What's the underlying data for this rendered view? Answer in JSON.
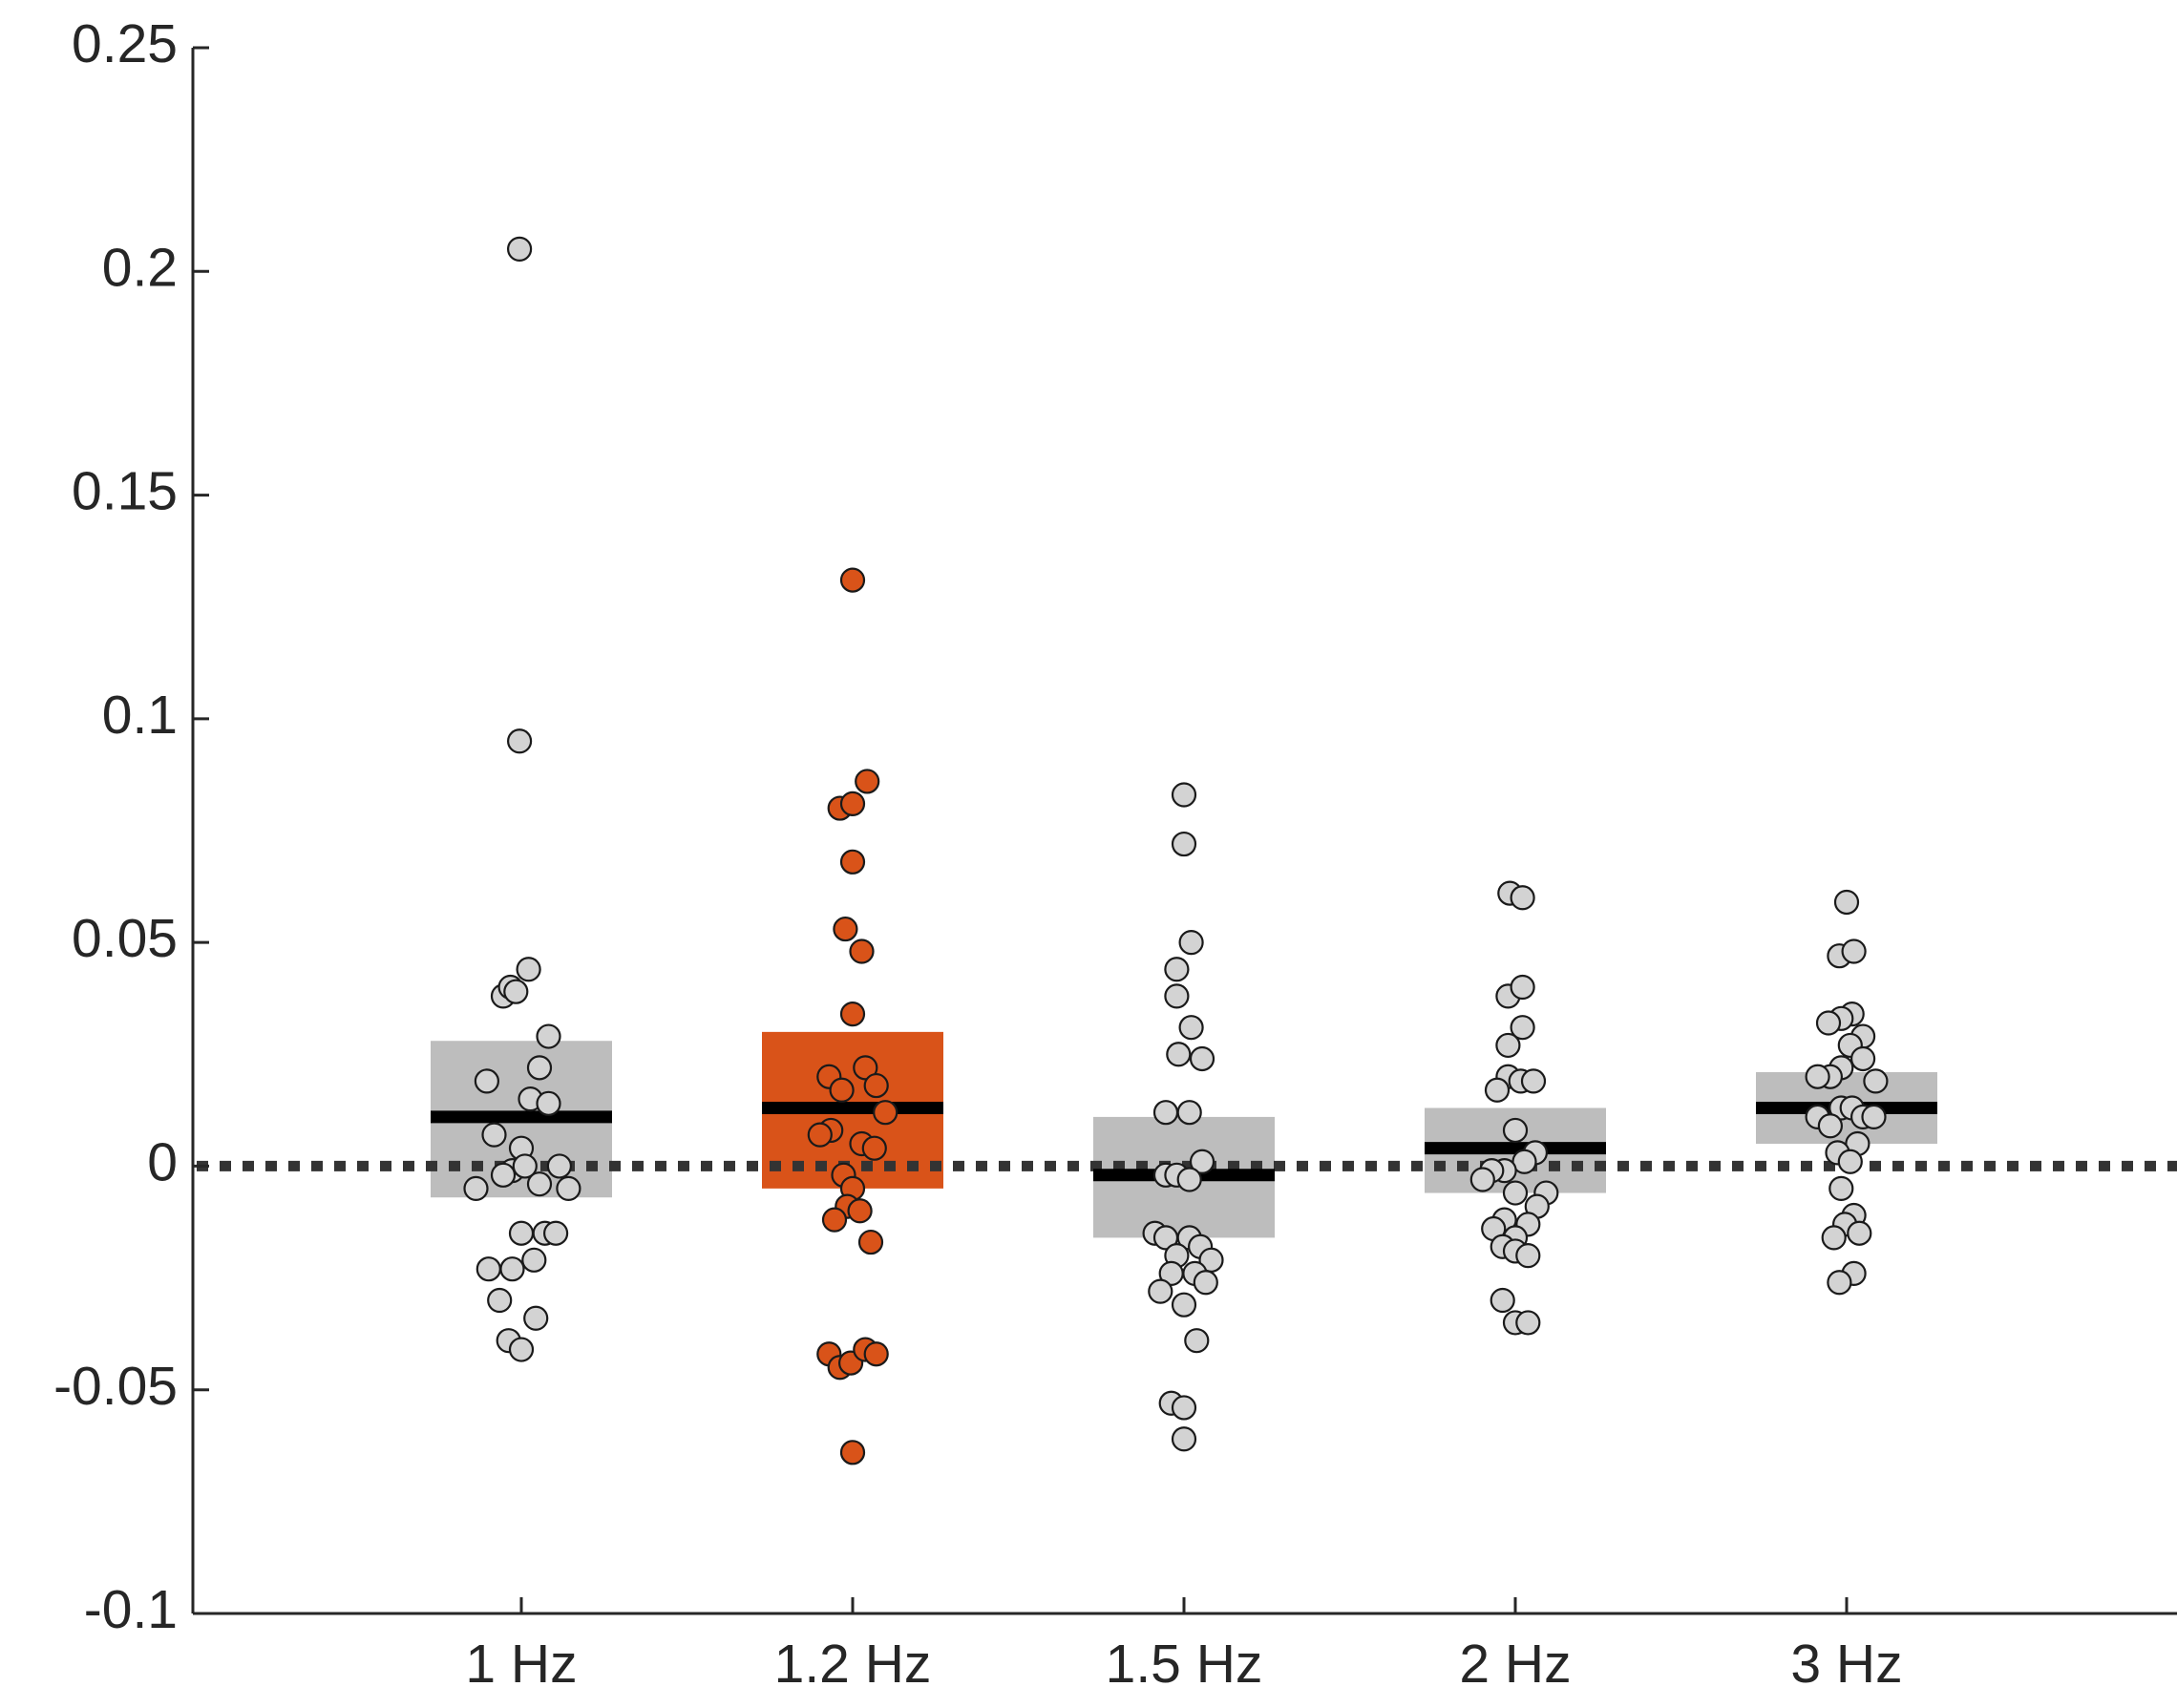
{
  "chart_data": {
    "type": "scatter",
    "subtype": "dot-strip with mean and error box",
    "title": "",
    "xlabel": "",
    "ylabel": "",
    "ylim": [
      -0.1,
      0.25
    ],
    "yticks": [
      -0.1,
      -0.05,
      0,
      0.05,
      0.1,
      0.15,
      0.2,
      0.25
    ],
    "ytick_labels": [
      "-0.1",
      "-0.05",
      "0",
      "0.05",
      "0.1",
      "0.15",
      "0.2",
      "0.25"
    ],
    "categories": [
      "1 Hz",
      "1.2 Hz",
      "1.5 Hz",
      "2 Hz",
      "3 Hz"
    ],
    "reference_line": {
      "y": 0,
      "style": "dotted",
      "color": "#333333"
    },
    "colors": {
      "default_fill": "#bdbdbd",
      "point_default": "#d3d3d3",
      "highlight": "#d95319",
      "mean_line": "#000000"
    },
    "series": [
      {
        "category": "1 Hz",
        "highlight": false,
        "mean": 0.011,
        "box": [
          -0.007,
          0.028
        ],
        "points": [
          {
            "dx": -0.02,
            "y": 0.205
          },
          {
            "dx": -0.02,
            "y": 0.095
          },
          {
            "dx": -0.2,
            "y": 0.038
          },
          {
            "dx": -0.12,
            "y": 0.04
          },
          {
            "dx": -0.06,
            "y": 0.039
          },
          {
            "dx": 0.08,
            "y": 0.044
          },
          {
            "dx": 0.3,
            "y": 0.029
          },
          {
            "dx": 0.2,
            "y": 0.022
          },
          {
            "dx": -0.38,
            "y": 0.019
          },
          {
            "dx": 0.1,
            "y": 0.015
          },
          {
            "dx": 0.3,
            "y": 0.014
          },
          {
            "dx": -0.3,
            "y": 0.007
          },
          {
            "dx": 0.0,
            "y": 0.004
          },
          {
            "dx": -0.1,
            "y": -0.001
          },
          {
            "dx": -0.2,
            "y": -0.002
          },
          {
            "dx": 0.04,
            "y": 0.0
          },
          {
            "dx": 0.42,
            "y": 0.0
          },
          {
            "dx": -0.5,
            "y": -0.005
          },
          {
            "dx": 0.2,
            "y": -0.004
          },
          {
            "dx": 0.52,
            "y": -0.005
          },
          {
            "dx": 0.0,
            "y": -0.015
          },
          {
            "dx": 0.26,
            "y": -0.015
          },
          {
            "dx": 0.38,
            "y": -0.015
          },
          {
            "dx": -0.36,
            "y": -0.023
          },
          {
            "dx": -0.1,
            "y": -0.023
          },
          {
            "dx": 0.14,
            "y": -0.021
          },
          {
            "dx": -0.24,
            "y": -0.03
          },
          {
            "dx": 0.16,
            "y": -0.034
          },
          {
            "dx": -0.14,
            "y": -0.039
          },
          {
            "dx": 0.0,
            "y": -0.041
          }
        ]
      },
      {
        "category": "1.2 Hz",
        "highlight": true,
        "mean": 0.013,
        "box": [
          -0.005,
          0.03
        ],
        "points": [
          {
            "dx": 0.0,
            "y": 0.131
          },
          {
            "dx": 0.16,
            "y": 0.086
          },
          {
            "dx": -0.14,
            "y": 0.08
          },
          {
            "dx": 0.0,
            "y": 0.081
          },
          {
            "dx": 0.0,
            "y": 0.068
          },
          {
            "dx": -0.08,
            "y": 0.053
          },
          {
            "dx": 0.1,
            "y": 0.048
          },
          {
            "dx": 0.0,
            "y": 0.034
          },
          {
            "dx": 0.14,
            "y": 0.022
          },
          {
            "dx": -0.26,
            "y": 0.02
          },
          {
            "dx": -0.12,
            "y": 0.017
          },
          {
            "dx": 0.26,
            "y": 0.018
          },
          {
            "dx": 0.36,
            "y": 0.012
          },
          {
            "dx": -0.24,
            "y": 0.008
          },
          {
            "dx": -0.36,
            "y": 0.007
          },
          {
            "dx": 0.1,
            "y": 0.005
          },
          {
            "dx": 0.24,
            "y": 0.004
          },
          {
            "dx": -0.1,
            "y": -0.002
          },
          {
            "dx": 0.0,
            "y": -0.005
          },
          {
            "dx": -0.06,
            "y": -0.009
          },
          {
            "dx": 0.08,
            "y": -0.01
          },
          {
            "dx": -0.2,
            "y": -0.012
          },
          {
            "dx": 0.2,
            "y": -0.017
          },
          {
            "dx": -0.26,
            "y": -0.042
          },
          {
            "dx": -0.14,
            "y": -0.045
          },
          {
            "dx": -0.02,
            "y": -0.044
          },
          {
            "dx": 0.14,
            "y": -0.041
          },
          {
            "dx": 0.26,
            "y": -0.042
          },
          {
            "dx": 0.0,
            "y": -0.064
          }
        ]
      },
      {
        "category": "1.5 Hz",
        "highlight": false,
        "mean": -0.002,
        "box": [
          -0.016,
          0.011
        ],
        "points": [
          {
            "dx": 0.0,
            "y": 0.083
          },
          {
            "dx": 0.0,
            "y": 0.072
          },
          {
            "dx": 0.08,
            "y": 0.05
          },
          {
            "dx": -0.08,
            "y": 0.044
          },
          {
            "dx": -0.08,
            "y": 0.038
          },
          {
            "dx": 0.08,
            "y": 0.031
          },
          {
            "dx": -0.06,
            "y": 0.025
          },
          {
            "dx": 0.2,
            "y": 0.024
          },
          {
            "dx": -0.2,
            "y": 0.012
          },
          {
            "dx": 0.06,
            "y": 0.012
          },
          {
            "dx": 0.2,
            "y": 0.001
          },
          {
            "dx": -0.2,
            "y": -0.002
          },
          {
            "dx": -0.08,
            "y": -0.002
          },
          {
            "dx": 0.06,
            "y": -0.003
          },
          {
            "dx": -0.32,
            "y": -0.015
          },
          {
            "dx": -0.2,
            "y": -0.016
          },
          {
            "dx": 0.06,
            "y": -0.016
          },
          {
            "dx": 0.18,
            "y": -0.018
          },
          {
            "dx": -0.08,
            "y": -0.02
          },
          {
            "dx": 0.3,
            "y": -0.021
          },
          {
            "dx": -0.14,
            "y": -0.024
          },
          {
            "dx": 0.12,
            "y": -0.024
          },
          {
            "dx": 0.24,
            "y": -0.026
          },
          {
            "dx": -0.26,
            "y": -0.028
          },
          {
            "dx": 0.0,
            "y": -0.031
          },
          {
            "dx": 0.14,
            "y": -0.039
          },
          {
            "dx": -0.14,
            "y": -0.053
          },
          {
            "dx": 0.0,
            "y": -0.054
          },
          {
            "dx": 0.0,
            "y": -0.061
          }
        ]
      },
      {
        "category": "2 Hz",
        "highlight": false,
        "mean": 0.004,
        "box": [
          -0.006,
          0.013
        ],
        "points": [
          {
            "dx": -0.06,
            "y": 0.061
          },
          {
            "dx": 0.08,
            "y": 0.06
          },
          {
            "dx": -0.08,
            "y": 0.038
          },
          {
            "dx": 0.08,
            "y": 0.04
          },
          {
            "dx": 0.08,
            "y": 0.031
          },
          {
            "dx": -0.08,
            "y": 0.027
          },
          {
            "dx": -0.08,
            "y": 0.02
          },
          {
            "dx": 0.06,
            "y": 0.019
          },
          {
            "dx": 0.2,
            "y": 0.019
          },
          {
            "dx": -0.2,
            "y": 0.017
          },
          {
            "dx": 0.0,
            "y": 0.008
          },
          {
            "dx": 0.22,
            "y": 0.003
          },
          {
            "dx": 0.1,
            "y": 0.001
          },
          {
            "dx": -0.12,
            "y": -0.001
          },
          {
            "dx": -0.26,
            "y": -0.001
          },
          {
            "dx": -0.36,
            "y": -0.003
          },
          {
            "dx": 0.0,
            "y": -0.006
          },
          {
            "dx": 0.34,
            "y": -0.006
          },
          {
            "dx": 0.24,
            "y": -0.009
          },
          {
            "dx": -0.12,
            "y": -0.012
          },
          {
            "dx": 0.14,
            "y": -0.013
          },
          {
            "dx": -0.24,
            "y": -0.014
          },
          {
            "dx": 0.0,
            "y": -0.016
          },
          {
            "dx": -0.14,
            "y": -0.018
          },
          {
            "dx": 0.0,
            "y": -0.019
          },
          {
            "dx": 0.14,
            "y": -0.02
          },
          {
            "dx": -0.14,
            "y": -0.03
          },
          {
            "dx": 0.0,
            "y": -0.035
          },
          {
            "dx": 0.14,
            "y": -0.035
          }
        ]
      },
      {
        "category": "3 Hz",
        "highlight": false,
        "mean": 0.013,
        "box": [
          0.005,
          0.021
        ],
        "points": [
          {
            "dx": 0.0,
            "y": 0.059
          },
          {
            "dx": -0.08,
            "y": 0.047
          },
          {
            "dx": 0.08,
            "y": 0.048
          },
          {
            "dx": 0.06,
            "y": 0.034
          },
          {
            "dx": -0.06,
            "y": 0.033
          },
          {
            "dx": -0.2,
            "y": 0.032
          },
          {
            "dx": 0.18,
            "y": 0.029
          },
          {
            "dx": 0.04,
            "y": 0.027
          },
          {
            "dx": 0.18,
            "y": 0.024
          },
          {
            "dx": -0.06,
            "y": 0.022
          },
          {
            "dx": -0.18,
            "y": 0.02
          },
          {
            "dx": -0.32,
            "y": 0.02
          },
          {
            "dx": 0.32,
            "y": 0.019
          },
          {
            "dx": -0.06,
            "y": 0.013
          },
          {
            "dx": 0.06,
            "y": 0.013
          },
          {
            "dx": 0.18,
            "y": 0.011
          },
          {
            "dx": 0.3,
            "y": 0.011
          },
          {
            "dx": -0.32,
            "y": 0.011
          },
          {
            "dx": -0.18,
            "y": 0.009
          },
          {
            "dx": 0.12,
            "y": 0.005
          },
          {
            "dx": -0.1,
            "y": 0.003
          },
          {
            "dx": 0.04,
            "y": 0.001
          },
          {
            "dx": -0.06,
            "y": -0.005
          },
          {
            "dx": 0.08,
            "y": -0.011
          },
          {
            "dx": -0.02,
            "y": -0.013
          },
          {
            "dx": 0.14,
            "y": -0.015
          },
          {
            "dx": -0.14,
            "y": -0.016
          },
          {
            "dx": 0.08,
            "y": -0.024
          },
          {
            "dx": -0.08,
            "y": -0.026
          }
        ]
      }
    ]
  }
}
